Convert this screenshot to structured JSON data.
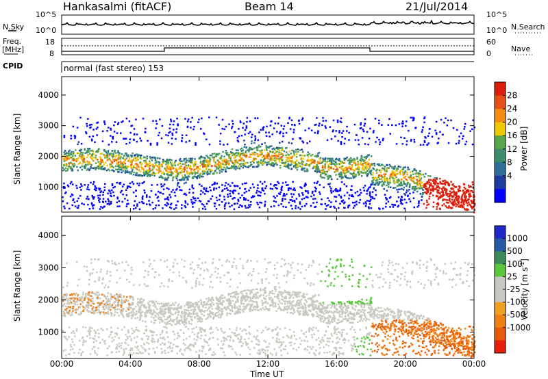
{
  "header": {
    "station": "Hankasalmi (fitACF)",
    "beam": "Beam 14",
    "date": "21/Jul/2014"
  },
  "noise_panel": {
    "left_label": "N.Sky",
    "right_label": "N.Search",
    "left_ticks": [
      "10^5",
      "10^0"
    ],
    "right_ticks": [
      "10^5",
      "10^0"
    ]
  },
  "freq_panel": {
    "left_label_top": "Freq.",
    "left_label_unit": "[MHz]",
    "left_ticks": [
      "18",
      "8"
    ],
    "right_label": "Nave",
    "right_ticks": [
      "60",
      "0"
    ],
    "cpid_label": "CPID",
    "mode_text": "normal (fast stereo) 153"
  },
  "colors": {
    "power_scale": [
      "#0000ff",
      "#1e3ca0",
      "#2e6e9a",
      "#3c8c6e",
      "#5aa64a",
      "#f0c800",
      "#f58c14",
      "#e65014",
      "#dc1e0a"
    ],
    "velocity_scale": [
      "#1e28c8",
      "#2858a8",
      "#3c8c5a",
      "#5ac83c",
      "#c8c8c0",
      "#c8c8c0",
      "#f0a020",
      "#f08014",
      "#e65a0a",
      "#e61e0a"
    ]
  },
  "chart_data": [
    {
      "type": "heatmap",
      "name": "power",
      "ylabel": "Slant Range [km]",
      "colorbar_label": "Power [dB]",
      "colorbar_ticks": [
        "28",
        "24",
        "20",
        "16",
        "12",
        "8",
        "4"
      ],
      "ylim": [
        180,
        4600
      ],
      "y_ticks": [
        "4000",
        "3000",
        "2000",
        "1000"
      ],
      "x_ticks": [
        "00:00",
        "04:00",
        "08:00",
        "12:00",
        "16:00",
        "20:00",
        "00:00"
      ],
      "xlabel": ""
    },
    {
      "type": "heatmap",
      "name": "velocity",
      "ylabel": "Slant Range [km]",
      "colorbar_label": "Velocity [m s",
      "colorbar_label_sup": "-1",
      "colorbar_label_end": "]",
      "colorbar_ticks": [
        "1000",
        "500",
        "100",
        "25",
        "-25",
        "-100",
        "-500",
        "-1000"
      ],
      "ylim": [
        180,
        4600
      ],
      "y_ticks": [
        "4000",
        "3000",
        "2000",
        "1000"
      ],
      "x_ticks": [
        "00:00",
        "04:00",
        "08:00",
        "12:00",
        "16:00",
        "20:00",
        "00:00"
      ],
      "xlabel": "Time UT"
    }
  ]
}
